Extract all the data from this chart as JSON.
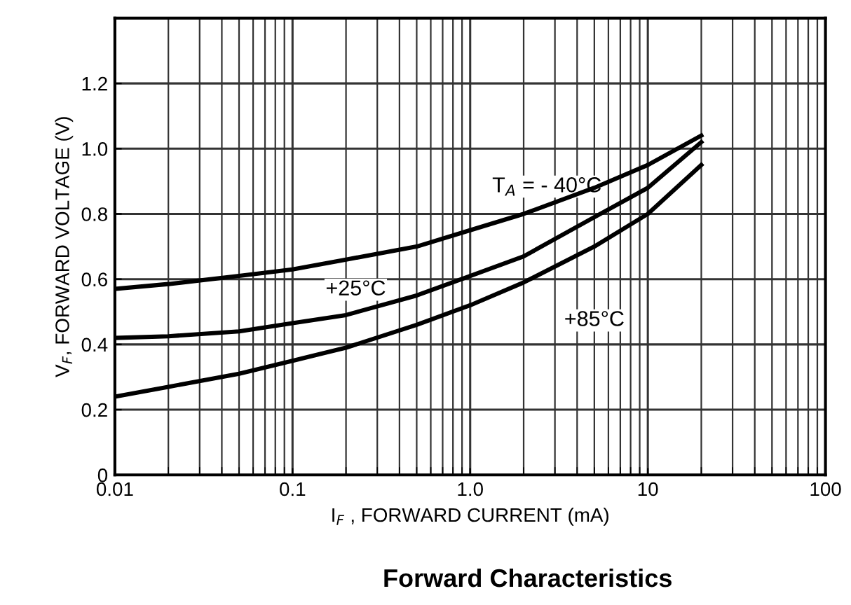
{
  "chart_data": {
    "type": "line",
    "title": "Forward Characteristics",
    "xlabel": "I$_{F}$ , FORWARD CURRENT (mA)",
    "ylabel": "V$_{F}$, FORWARD VOLTAGE (V)",
    "x": [
      0.01,
      0.02,
      0.05,
      0.1,
      0.2,
      0.5,
      1,
      2,
      5,
      10,
      20
    ],
    "series": [
      {
        "name": "T$_{A}$ = - 40°C",
        "color": "#000000",
        "values": [
          0.57,
          0.585,
          0.61,
          0.63,
          0.66,
          0.7,
          0.75,
          0.8,
          0.88,
          0.95,
          1.04
        ]
      },
      {
        "name": "+25°C",
        "color": "#000000",
        "values": [
          0.42,
          0.425,
          0.44,
          0.465,
          0.49,
          0.55,
          0.61,
          0.67,
          0.79,
          0.88,
          1.02
        ]
      },
      {
        "name": "+85°C",
        "color": "#000000",
        "values": [
          0.24,
          0.27,
          0.31,
          0.35,
          0.39,
          0.46,
          0.52,
          0.59,
          0.7,
          0.8,
          0.95
        ]
      }
    ],
    "log": "x",
    "xlim": [
      0.01,
      100
    ],
    "xticks": [
      0.01,
      0.1,
      {
        "value": 1,
        "label": "1.0"
      },
      10,
      100
    ],
    "ylim": [
      0,
      1.4
    ],
    "yticks": [
      0,
      0.2,
      0.4,
      0.6,
      0.8,
      {
        "value": 1,
        "label": "1.0"
      },
      1.2
    ],
    "grid": true,
    "marker": "none",
    "line_style": "solid"
  }
}
